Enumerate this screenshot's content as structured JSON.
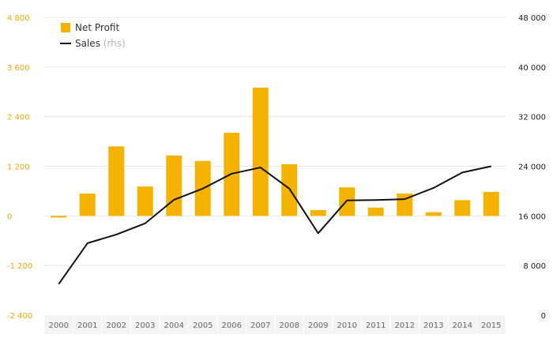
{
  "chart_data": {
    "type": "bar",
    "categories": [
      "2000",
      "2001",
      "2002",
      "2003",
      "2004",
      "2005",
      "2006",
      "2007",
      "2008",
      "2009",
      "2010",
      "2011",
      "2012",
      "2013",
      "2014",
      "2015"
    ],
    "series": [
      {
        "name": "Net Profit",
        "type": "bar",
        "axis": "left",
        "color": "#f5b300",
        "values": [
          -40,
          540,
          1680,
          710,
          1460,
          1330,
          2010,
          3100,
          1250,
          140,
          690,
          200,
          540,
          90,
          380,
          580
        ]
      },
      {
        "name": "Sales",
        "suffix": "(rhs)",
        "type": "line",
        "axis": "right",
        "color": "#111111",
        "values": [
          5000,
          11600,
          13000,
          14800,
          18600,
          20400,
          22800,
          23800,
          20400,
          13200,
          18500,
          18550,
          18700,
          20500,
          23000,
          24000
        ]
      }
    ],
    "y_left": {
      "ylim": [
        -2400,
        4800
      ],
      "ticks": [
        -2400,
        -1200,
        0,
        1200,
        2400,
        3600,
        4800
      ],
      "tick_labels": [
        "-2 400",
        "-1 200",
        "0",
        "1 200",
        "2 400",
        "3 600",
        "4 800"
      ]
    },
    "y_right": {
      "ylim": [
        0,
        48000
      ],
      "ticks": [
        0,
        8000,
        16000,
        24000,
        32000,
        40000,
        48000
      ],
      "tick_labels": [
        "0",
        "8 000",
        "16 000",
        "24 000",
        "32 000",
        "40 000",
        "48 000"
      ]
    },
    "grid": true,
    "legend_position": "top-left"
  },
  "colors": {
    "left_axis": "#f0a800",
    "grid": "#e6e6e6",
    "axis_band": "#f3f3f3"
  }
}
